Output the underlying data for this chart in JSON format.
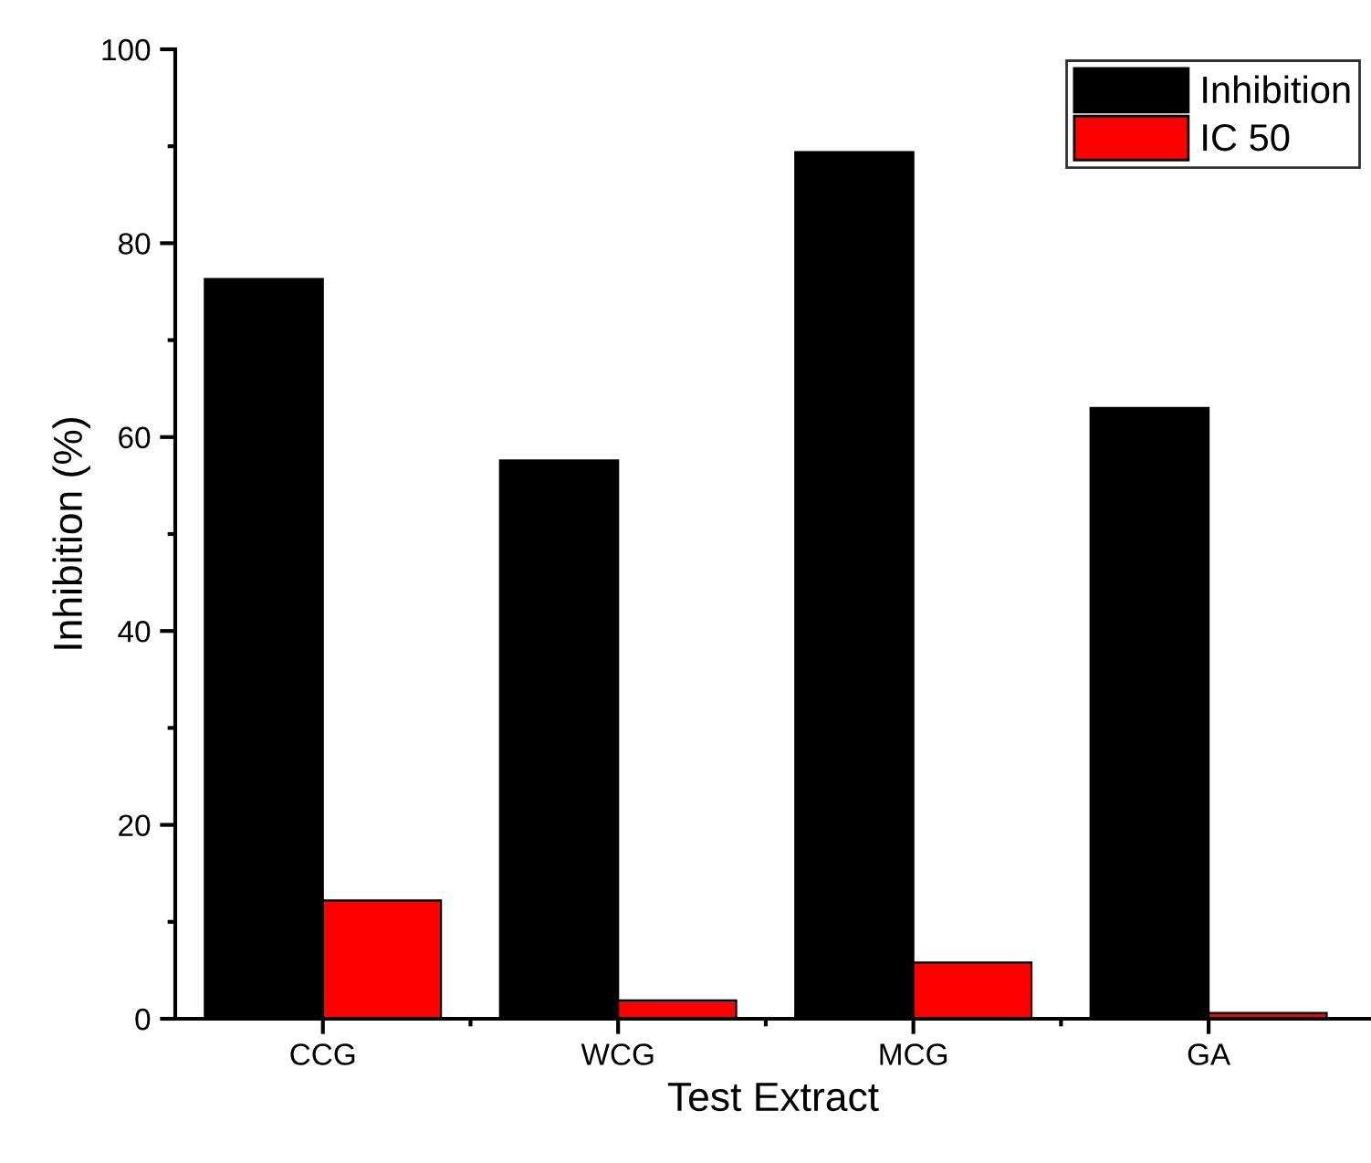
{
  "chart_data": {
    "type": "bar",
    "xlabel": "Test Extract",
    "ylabel": "Inhibition (%)",
    "categories": [
      "CCG",
      "WCG",
      "MCG",
      "GA"
    ],
    "series": [
      {
        "name": "Inhibition",
        "color": "#000000",
        "values": [
          76.3,
          57.6,
          89.4,
          63.0
        ]
      },
      {
        "name": "IC 50",
        "color": "#ff0000",
        "values": [
          12.2,
          1.9,
          5.8,
          0.6
        ]
      }
    ],
    "ylim": [
      0,
      100
    ],
    "yticks": [
      0,
      20,
      40,
      60,
      80,
      100
    ],
    "grid": false,
    "legend": "top right"
  }
}
